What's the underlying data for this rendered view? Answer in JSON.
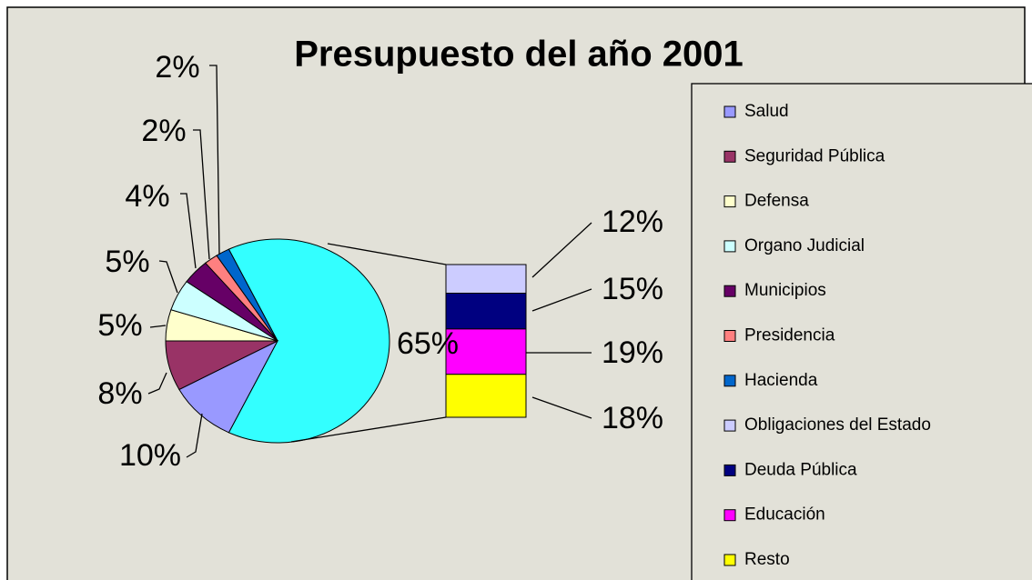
{
  "chart_data": {
    "type": "pie",
    "title": "Presupuesto del año 2001",
    "categories": [
      "Salud",
      "Seguridad Pública",
      "Defensa",
      "Organo Judicial",
      "Municipios",
      "Presidencia",
      "Hacienda"
    ],
    "values": [
      10,
      8,
      5,
      5,
      4,
      2,
      2
    ],
    "value_labels": [
      "10%",
      "8%",
      "5%",
      "5%",
      "4%",
      "2%",
      "2%"
    ],
    "colors": [
      "#9999ff",
      "#993366",
      "#ffffcc",
      "#ccffff",
      "#660066",
      "#ff8080",
      "#0066cc"
    ],
    "other": {
      "value": 65,
      "value_label": "65%",
      "color": "#33ffff"
    },
    "breakdown": {
      "categories": [
        "Obligaciones del Estado",
        "Deuda Pública",
        "Educación",
        "Resto"
      ],
      "values": [
        12,
        15,
        19,
        18
      ],
      "value_labels": [
        "12%",
        "15%",
        "19%",
        "18%"
      ],
      "colors": [
        "#ccccff",
        "#000080",
        "#ff00ff",
        "#ffff00"
      ]
    },
    "legend": "right"
  }
}
